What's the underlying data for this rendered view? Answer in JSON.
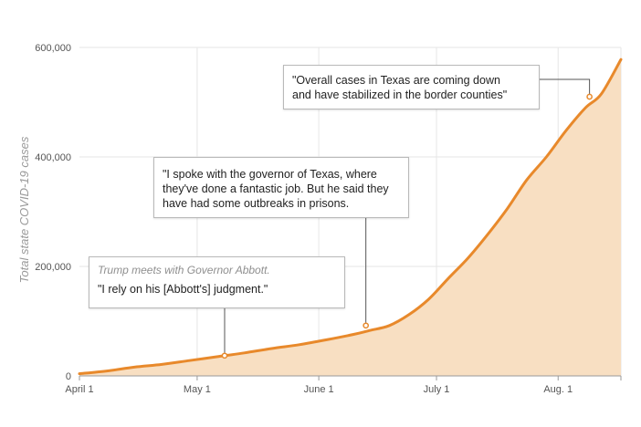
{
  "chart_data": {
    "type": "area",
    "ylabel": "Total state COVID-19 cases",
    "xlabel": "",
    "ylim": [
      0,
      600000
    ],
    "yticks": [
      0,
      200000,
      400000,
      600000
    ],
    "ytick_labels": [
      "0",
      "200,000",
      "400,000",
      "600,000"
    ],
    "xticks": [
      {
        "date": "2020-04-01",
        "label": "April 1"
      },
      {
        "date": "2020-05-01",
        "label": "May 1"
      },
      {
        "date": "2020-06-01",
        "label": "June 1"
      },
      {
        "date": "2020-07-01",
        "label": "July 1"
      },
      {
        "date": "2020-08-01",
        "label": "Aug. 1"
      }
    ],
    "xlim": [
      "2020-04-01",
      "2020-08-17"
    ],
    "grid": true,
    "colors": {
      "line": "#e8892b",
      "fill": "#f8dfc2",
      "grid": "#e6e6e6"
    },
    "series": [
      {
        "points": [
          [
            "2020-04-01",
            4000
          ],
          [
            "2020-04-08",
            9000
          ],
          [
            "2020-04-15",
            16000
          ],
          [
            "2020-04-22",
            21000
          ],
          [
            "2020-04-29",
            28000
          ],
          [
            "2020-05-06",
            35000
          ],
          [
            "2020-05-13",
            42000
          ],
          [
            "2020-05-20",
            50000
          ],
          [
            "2020-05-27",
            57000
          ],
          [
            "2020-06-03",
            66000
          ],
          [
            "2020-06-10",
            76000
          ],
          [
            "2020-06-14",
            83000
          ],
          [
            "2020-06-19",
            92000
          ],
          [
            "2020-06-24",
            112000
          ],
          [
            "2020-06-29",
            140000
          ],
          [
            "2020-07-04",
            178000
          ],
          [
            "2020-07-09",
            215000
          ],
          [
            "2020-07-14",
            258000
          ],
          [
            "2020-07-19",
            305000
          ],
          [
            "2020-07-24",
            358000
          ],
          [
            "2020-07-29",
            400000
          ],
          [
            "2020-08-03",
            448000
          ],
          [
            "2020-08-08",
            490000
          ],
          [
            "2020-08-12",
            515000
          ],
          [
            "2020-08-17",
            578000
          ]
        ]
      }
    ],
    "annotations": [
      {
        "date": "2020-05-08",
        "value": 37000,
        "heading": "Trump meets with Governor Abbott.",
        "lines": [
          "\"I rely on his [Abbott's] judgment.\""
        ]
      },
      {
        "date": "2020-06-13",
        "value": 92000,
        "heading": "",
        "lines": [
          "\"I spoke with the governor of Texas, where",
          "they've done a fantastic job. But he said they",
          "have had some outbreaks in prisons."
        ]
      },
      {
        "date": "2020-08-09",
        "value": 510000,
        "heading": "",
        "lines": [
          "\"Overall cases in Texas are coming down",
          "and have stabilized in the border counties\""
        ]
      }
    ]
  }
}
